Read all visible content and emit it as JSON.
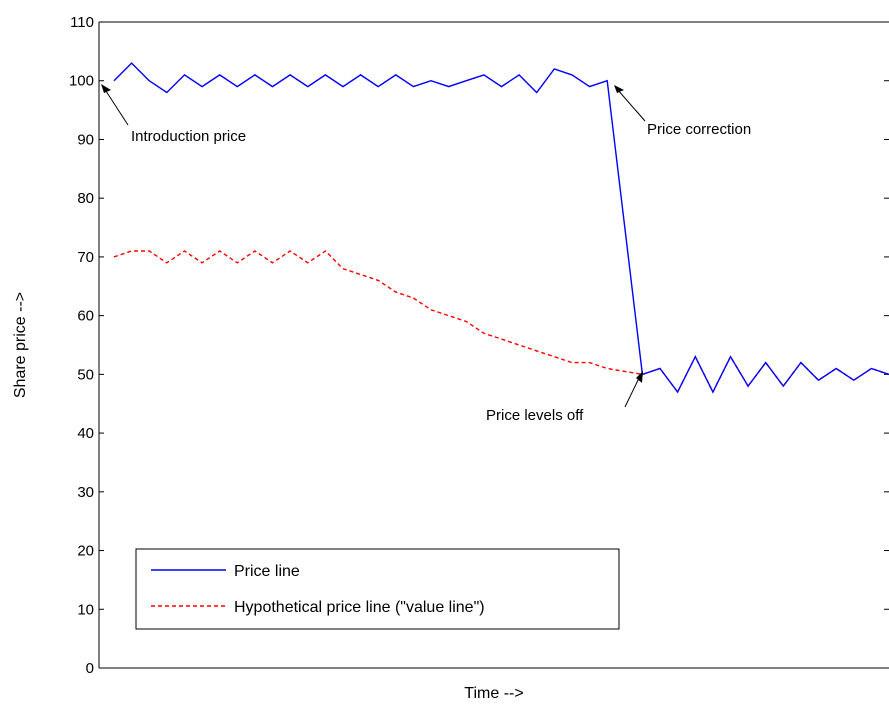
{
  "chart_data": {
    "type": "line",
    "title": "",
    "xlabel": "Time -->",
    "ylabel": "Share price -->",
    "ylim": [
      0,
      110
    ],
    "yticks": [
      0,
      10,
      20,
      30,
      40,
      50,
      60,
      70,
      80,
      90,
      100,
      110
    ],
    "grid": false,
    "legend_position": "bottom-left",
    "series": [
      {
        "name": "Price line",
        "color": "#0000ff",
        "style": "solid",
        "points": [
          [
            0,
            100
          ],
          [
            1,
            103
          ],
          [
            2,
            100
          ],
          [
            3,
            98
          ],
          [
            4,
            101
          ],
          [
            5,
            99
          ],
          [
            6,
            101
          ],
          [
            7,
            99
          ],
          [
            8,
            101
          ],
          [
            9,
            99
          ],
          [
            10,
            101
          ],
          [
            11,
            99
          ],
          [
            12,
            101
          ],
          [
            13,
            99
          ],
          [
            14,
            101
          ],
          [
            15,
            99
          ],
          [
            16,
            101
          ],
          [
            17,
            99
          ],
          [
            18,
            100
          ],
          [
            19,
            99
          ],
          [
            20,
            100
          ],
          [
            21,
            101
          ],
          [
            22,
            99
          ],
          [
            23,
            101
          ],
          [
            24,
            98
          ],
          [
            25,
            102
          ],
          [
            26,
            101
          ],
          [
            27,
            99
          ],
          [
            28,
            100
          ],
          [
            29,
            75
          ],
          [
            30,
            50
          ],
          [
            31,
            51
          ],
          [
            32,
            47
          ],
          [
            33,
            53
          ],
          [
            34,
            47
          ],
          [
            35,
            53
          ],
          [
            36,
            48
          ],
          [
            37,
            52
          ],
          [
            38,
            48
          ],
          [
            39,
            52
          ],
          [
            40,
            49
          ],
          [
            41,
            51
          ],
          [
            42,
            49
          ],
          [
            43,
            51
          ],
          [
            44,
            50
          ]
        ]
      },
      {
        "name": "Hypothetical price line (\"value line\")",
        "color": "#ff0000",
        "style": "dashed",
        "points": [
          [
            0,
            70
          ],
          [
            1,
            71
          ],
          [
            2,
            71
          ],
          [
            3,
            69
          ],
          [
            4,
            71
          ],
          [
            5,
            69
          ],
          [
            6,
            71
          ],
          [
            7,
            69
          ],
          [
            8,
            71
          ],
          [
            9,
            69
          ],
          [
            10,
            71
          ],
          [
            11,
            69
          ],
          [
            12,
            71
          ],
          [
            13,
            68
          ],
          [
            14,
            67
          ],
          [
            15,
            66
          ],
          [
            16,
            64
          ],
          [
            17,
            63
          ],
          [
            18,
            61
          ],
          [
            19,
            60
          ],
          [
            20,
            59
          ],
          [
            21,
            57
          ],
          [
            22,
            56
          ],
          [
            23,
            55
          ],
          [
            24,
            54
          ],
          [
            25,
            53
          ],
          [
            26,
            52
          ],
          [
            27,
            52
          ],
          [
            28,
            51
          ],
          [
            29,
            50.5
          ],
          [
            30,
            50
          ],
          [
            31,
            51
          ],
          [
            32,
            47
          ],
          [
            33,
            53
          ],
          [
            34,
            47
          ],
          [
            35,
            53
          ],
          [
            36,
            48
          ],
          [
            37,
            52
          ],
          [
            38,
            48
          ],
          [
            39,
            52
          ],
          [
            40,
            49
          ],
          [
            41,
            51
          ],
          [
            42,
            49
          ],
          [
            43,
            51
          ],
          [
            44,
            50
          ]
        ]
      }
    ],
    "annotations": [
      {
        "text": "Introduction price",
        "x": 0,
        "y": 100
      },
      {
        "text": "Price correction",
        "x": 28,
        "y": 100
      },
      {
        "text": "Price levels off",
        "x": 30,
        "y": 50
      }
    ]
  }
}
